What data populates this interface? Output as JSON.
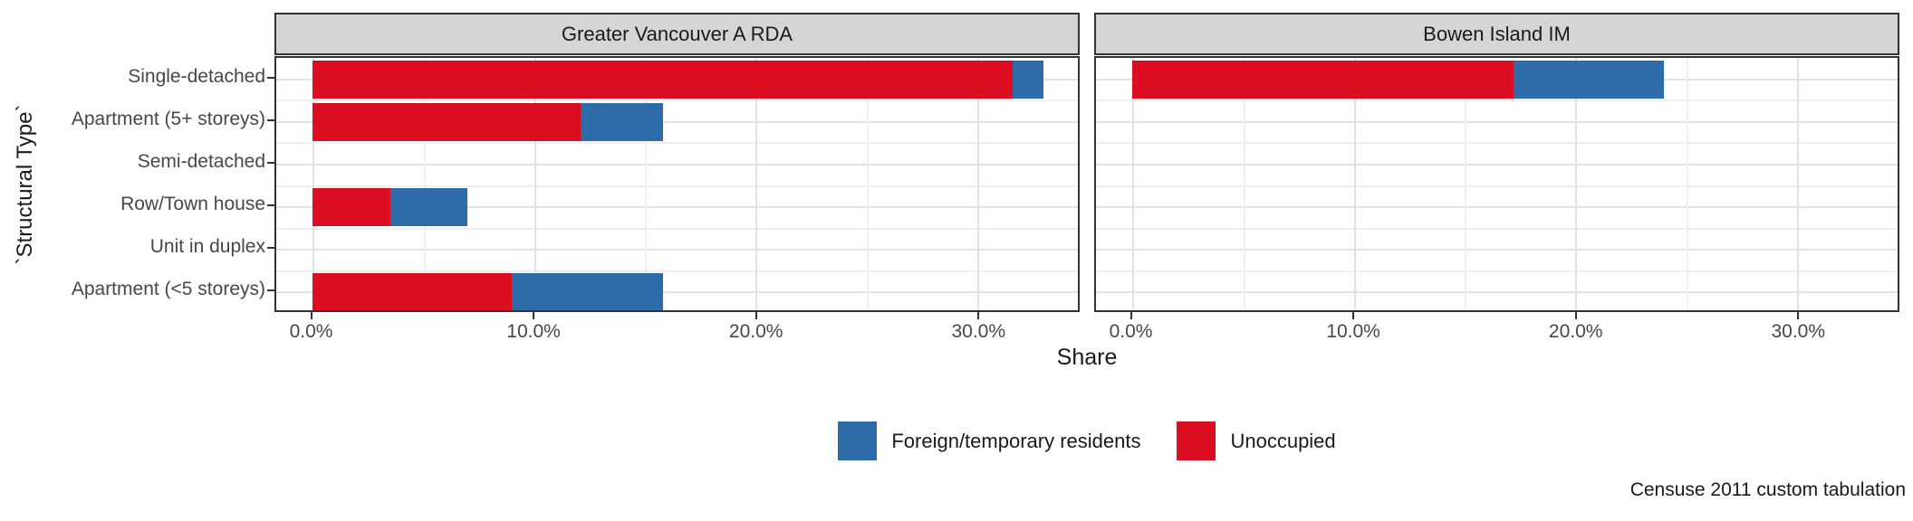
{
  "figure": {
    "xlabel": "Share",
    "ylabel": "`Structural Type`",
    "caption": "Censuse 2011 custom tabulation"
  },
  "legend": {
    "items": [
      {
        "label": "Foreign/temporary residents",
        "color": "#2d6ca8"
      },
      {
        "label": "Unoccupied",
        "color": "#db0d20"
      }
    ]
  },
  "chart_data": {
    "type": "bar",
    "orientation": "horizontal",
    "stacked": true,
    "title": "",
    "xlabel": "Share",
    "ylabel": "`Structural Type`",
    "caption": "Censuse 2011 custom tabulation",
    "grid": true,
    "legend_position": "bottom",
    "categories": [
      "Single-detached",
      "Apartment (5+ storeys)",
      "Semi-detached",
      "Row/Town house",
      "Unit in duplex",
      "Apartment (<5 storeys)"
    ],
    "x_tick_labels": [
      "0.0%",
      "10.0%",
      "20.0%",
      "30.0%"
    ],
    "x_tick_values": [
      0,
      10,
      20,
      30
    ],
    "x_minor_values": [
      5,
      15,
      25
    ],
    "xlim": [
      -1.65,
      34.55
    ],
    "unit": "percent",
    "facets": [
      {
        "title": "Greater Vancouver A RDA",
        "series": [
          {
            "name": "Unoccupied",
            "color": "#db0d20",
            "values": [
              31.6,
              12.1,
              0,
              3.5,
              0,
              9.0
            ]
          },
          {
            "name": "Foreign/temporary residents",
            "color": "#2d6ca8",
            "values": [
              1.4,
              3.7,
              0,
              3.5,
              0,
              6.8
            ]
          }
        ]
      },
      {
        "title": "Bowen Island IM",
        "series": [
          {
            "name": "Unoccupied",
            "color": "#db0d20",
            "values": [
              17.2,
              0,
              0,
              0,
              0,
              0
            ]
          },
          {
            "name": "Foreign/temporary residents",
            "color": "#2d6ca8",
            "values": [
              6.8,
              0,
              0,
              0,
              0,
              0
            ]
          }
        ]
      }
    ]
  }
}
